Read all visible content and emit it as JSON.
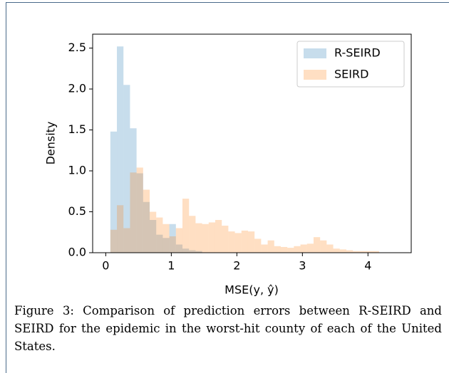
{
  "chart_data": {
    "type": "histogram",
    "xlabel": "MSE(y, ŷ)",
    "ylabel": "Density",
    "xlim": [
      -0.2,
      4.66
    ],
    "ylim": [
      0,
      2.67
    ],
    "xticks": [
      0,
      1,
      2,
      3,
      4
    ],
    "yticks": [
      {
        "value": 0,
        "label": "0.0"
      },
      0.5,
      {
        "value": 1,
        "label": "1.0"
      },
      1.5,
      {
        "value": 2,
        "label": "2.0"
      },
      2.5
    ],
    "legend": "upper right",
    "alpha": 0.25,
    "series": [
      {
        "name": "R-SEIRD",
        "color": "#1f77b4",
        "bins": [
          0.07,
          0.17,
          0.27,
          0.37,
          0.47,
          0.57,
          0.67,
          0.77,
          0.87,
          0.97,
          1.07,
          1.17,
          1.27,
          1.37,
          1.47
        ],
        "values": [
          1.48,
          2.52,
          2.05,
          1.52,
          0.97,
          0.62,
          0.4,
          0.22,
          0.18,
          0.35,
          0.1,
          0.05,
          0.03,
          0.02
        ]
      },
      {
        "name": "SEIRD",
        "color": "#ff7f0e",
        "bins": [
          0.07,
          0.17,
          0.27,
          0.37,
          0.47,
          0.57,
          0.67,
          0.77,
          0.87,
          0.97,
          1.07,
          1.17,
          1.27,
          1.37,
          1.47,
          1.57,
          1.67,
          1.77,
          1.87,
          1.97,
          2.07,
          2.17,
          2.27,
          2.37,
          2.47,
          2.57,
          2.67,
          2.77,
          2.87,
          2.97,
          3.07,
          3.17,
          3.27,
          3.37,
          3.47,
          3.57,
          3.67,
          3.77,
          3.87,
          3.97,
          4.07,
          4.17
        ],
        "values": [
          0.28,
          0.58,
          0.3,
          0.98,
          1.04,
          0.77,
          0.5,
          0.43,
          0.35,
          0.2,
          0.3,
          0.66,
          0.45,
          0.36,
          0.35,
          0.37,
          0.4,
          0.33,
          0.26,
          0.24,
          0.27,
          0.26,
          0.17,
          0.1,
          0.15,
          0.08,
          0.07,
          0.06,
          0.08,
          0.1,
          0.11,
          0.19,
          0.15,
          0.1,
          0.05,
          0.04,
          0.03,
          0.02,
          0.02,
          0.02,
          0.02
        ]
      }
    ]
  },
  "caption": "Figure 3: Comparison of prediction errors between R-SEIRD and SEIRD for the epidemic in the worst-hit county of each of the United States."
}
